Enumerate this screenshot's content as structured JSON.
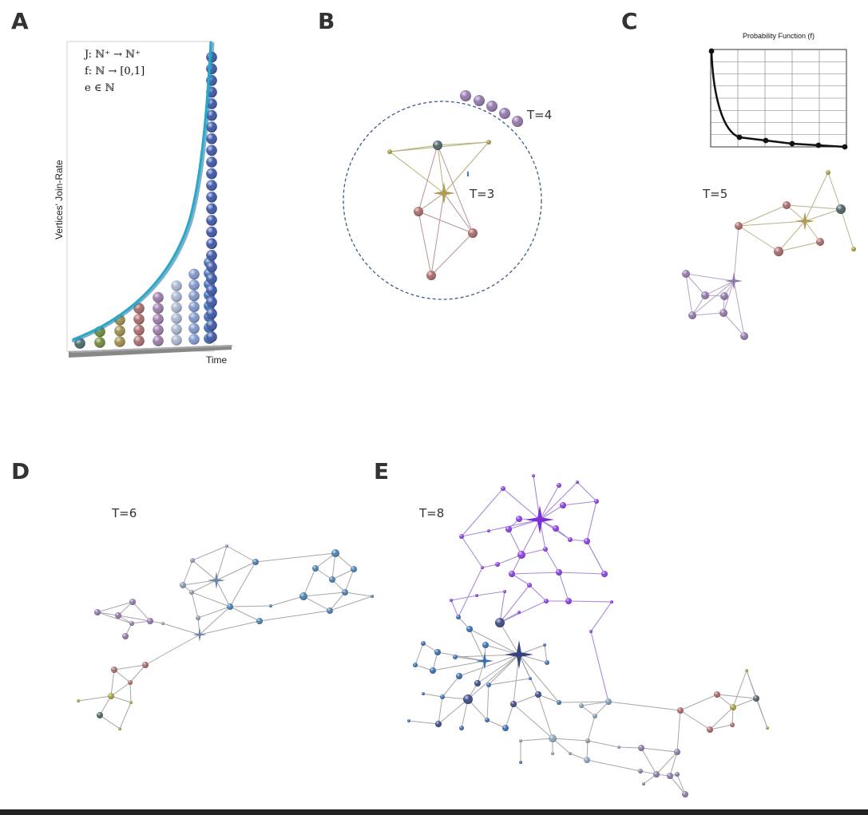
{
  "panels": {
    "a": {
      "letter": "A",
      "ylabel": "Vertices' Join-Rate",
      "xlabel": "Time",
      "formulas": [
        "J: ℕ⁺ → ℕ⁺",
        "f: ℕ → [0,1]",
        "e ∈ ℕ"
      ],
      "column_counts": [
        1,
        2,
        3,
        4,
        5,
        6,
        7,
        8,
        25
      ]
    },
    "b": {
      "letter": "B",
      "t_inside": "T=3",
      "t_outside": "T=4"
    },
    "c": {
      "letter": "C",
      "pf_title": "Probability Function (f)",
      "t_label": "T=5"
    },
    "d": {
      "letter": "D",
      "t_label": "T=6"
    },
    "e": {
      "letter": "E",
      "t_label": "T=8"
    }
  },
  "colors": {
    "letter": "#333333",
    "curve": "#2aa7c9",
    "edge": "#9a9a9a",
    "purple_edge": "#a98ad6",
    "ball_colors": [
      "#4a6b6e",
      "#6f8a3a",
      "#9c8c4a",
      "#a86a6a",
      "#9b7aa8",
      "#a8b4cc",
      "#7e95c8",
      "#3d6fb3",
      "#3f57a5"
    ]
  }
}
